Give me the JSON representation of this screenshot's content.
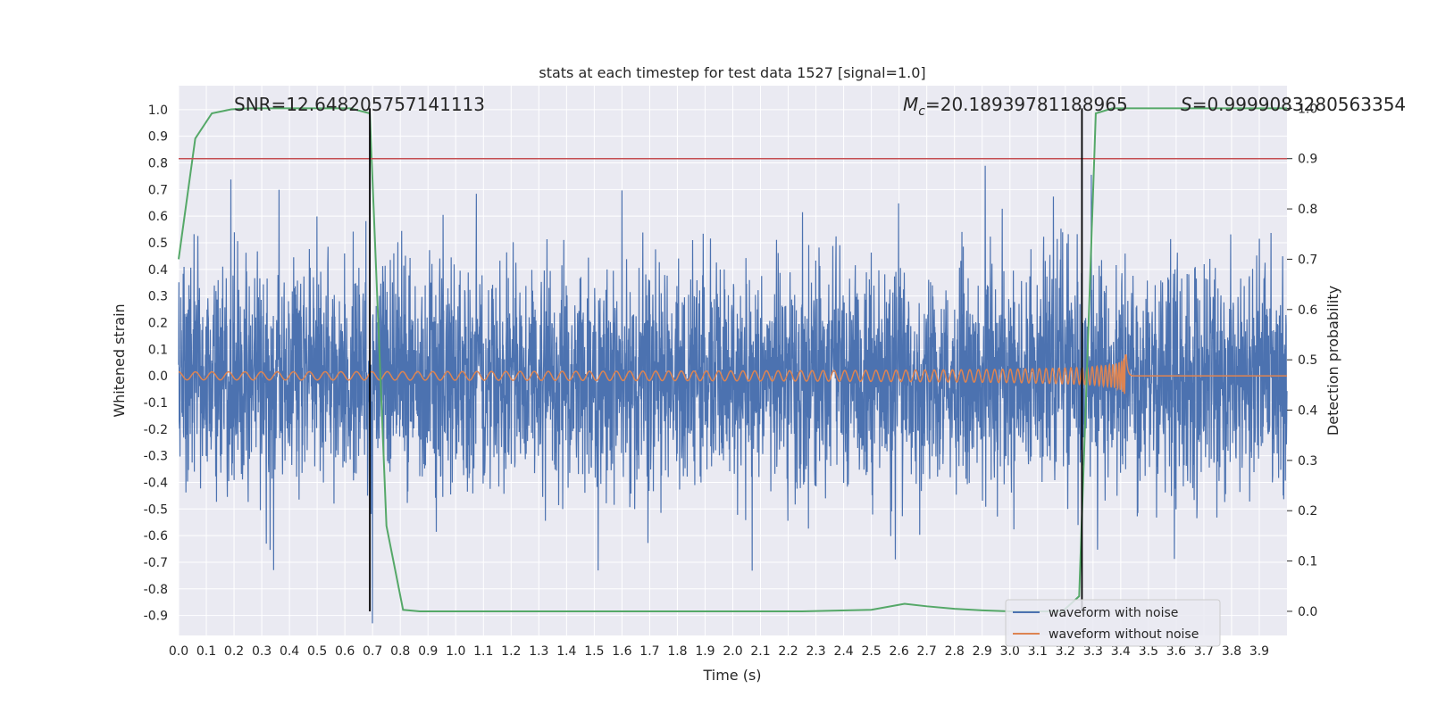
{
  "chart_data": {
    "type": "line",
    "title": "stats at each timestep for test data 1527 [signal=1.0]",
    "xlabel": "Time (s)",
    "ylabel": "Whitened strain",
    "ylabel_right": "Detection probability",
    "xlim": [
      0.0,
      4.0
    ],
    "ylim": [
      -0.975,
      1.09
    ],
    "ylim_right": [
      -0.048,
      1.045
    ],
    "x_ticks": [
      "0.0",
      "0.1",
      "0.2",
      "0.3",
      "0.4",
      "0.5",
      "0.6",
      "0.7",
      "0.8",
      "0.9",
      "1.0",
      "1.1",
      "1.2",
      "1.3",
      "1.4",
      "1.5",
      "1.6",
      "1.7",
      "1.8",
      "1.9",
      "2.0",
      "2.1",
      "2.2",
      "2.3",
      "2.4",
      "2.5",
      "2.6",
      "2.7",
      "2.8",
      "2.9",
      "3.0",
      "3.1",
      "3.2",
      "3.3",
      "3.4",
      "3.5",
      "3.6",
      "3.7",
      "3.8",
      "3.9"
    ],
    "y_ticks": [
      "1.0",
      "0.9",
      "0.8",
      "0.7",
      "0.6",
      "0.5",
      "0.4",
      "0.3",
      "0.2",
      "0.1",
      "0.0",
      "-0.1",
      "-0.2",
      "-0.3",
      "-0.4",
      "-0.5",
      "-0.6",
      "-0.7",
      "-0.8",
      "-0.9"
    ],
    "y_ticks_right": [
      "1.0",
      "0.9",
      "0.8",
      "0.7",
      "0.6",
      "0.5",
      "0.4",
      "0.3",
      "0.2",
      "0.1",
      "0.0"
    ],
    "grid": true,
    "legend_position": "bottom-right",
    "annotations": {
      "snr": "SNR=12.648205757141113",
      "mc_symbol": "M",
      "mc_sub": "c",
      "mc_value": "=20.18939781188965",
      "s_symbol": "S",
      "s_value": "=0.9999083280563354"
    },
    "threshold_right": 0.9,
    "vertical_markers": [
      0.69,
      3.26
    ],
    "noise_params": {
      "samples": 4096,
      "std": 0.21,
      "offset": 0.0
    },
    "chirp": {
      "name": "waveform without noise",
      "merger_time": 3.42,
      "base_amplitude": 0.015,
      "base_frequency_hz": 15
    },
    "series": [
      {
        "name": "waveform with noise",
        "color": "#4c72b0"
      },
      {
        "name": "waveform without noise",
        "color": "#dd8452"
      },
      {
        "name": "",
        "color": "#55a868",
        "axis": "right",
        "x": [
          0.0,
          0.06,
          0.12,
          0.19,
          0.25,
          0.31,
          0.37,
          0.44,
          0.5,
          0.56,
          0.62,
          0.69,
          0.75,
          0.81,
          0.87,
          0.94,
          1.0,
          1.5,
          2.0,
          2.25,
          2.5,
          2.62,
          2.7,
          2.8,
          2.9,
          3.0,
          3.12,
          3.19,
          3.25,
          3.31,
          3.37,
          3.5,
          3.75,
          4.0
        ],
        "values": [
          0.7,
          0.94,
          0.99,
          0.998,
          1.0,
          1.0,
          1.0,
          1.0,
          1.0,
          1.0,
          1.0,
          0.99,
          0.17,
          0.003,
          0.0,
          0.0,
          0.0,
          0.0,
          0.0,
          0.0,
          0.003,
          0.015,
          0.01,
          0.005,
          0.002,
          0.0,
          0.0,
          0.0,
          0.03,
          0.99,
          1.0,
          1.0,
          1.0,
          1.0
        ]
      }
    ],
    "colors": {
      "plot_bg": "#eaeaf2",
      "grid": "#ffffff",
      "threshold": "#c44e52",
      "marker": "#000000"
    }
  }
}
